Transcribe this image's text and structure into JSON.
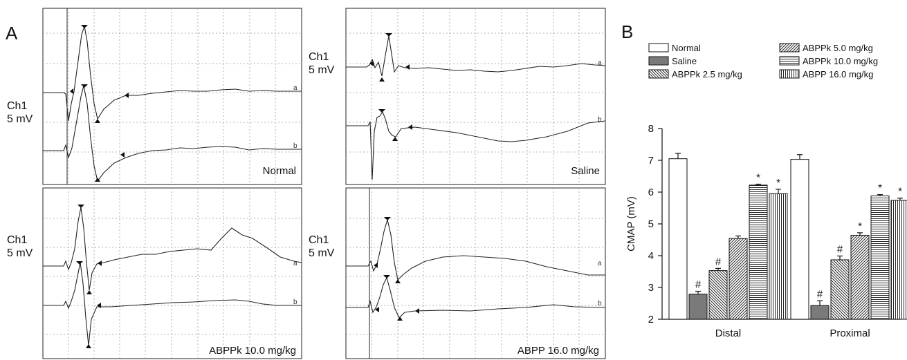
{
  "panel_a": {
    "letter": "A",
    "panels": [
      {
        "id": "normal",
        "channel": "Ch1",
        "scale": "5 mV",
        "condition": "Normal",
        "trace_a": "a",
        "trace_b": "b"
      },
      {
        "id": "saline",
        "channel": "Ch1",
        "scale": "5 mV",
        "condition": "Saline",
        "trace_a": "a",
        "trace_b": "b"
      },
      {
        "id": "abppk10",
        "channel": "Ch1",
        "scale": "5 mV",
        "condition": "ABPPk 10.0 mg/kg",
        "trace_a": "a",
        "trace_b": "b"
      },
      {
        "id": "abpp16",
        "channel": "Ch1",
        "scale": "5 mV",
        "condition": "ABPP 16.0 mg/kg",
        "trace_a": "a",
        "trace_b": "b"
      }
    ]
  },
  "panel_b": {
    "letter": "B",
    "legend": [
      {
        "label": "Normal",
        "pattern": "white"
      },
      {
        "label": "Saline",
        "pattern": "gray"
      },
      {
        "label": "ABPPk 2.5 mg/kg",
        "pattern": "diag-back"
      },
      {
        "label": "ABPPk 5.0 mg/kg",
        "pattern": "diag-fwd"
      },
      {
        "label": "ABPPk 10.0 mg/kg",
        "pattern": "horiz"
      },
      {
        "label": "ABPP 16.0 mg/kg",
        "pattern": "vert"
      }
    ]
  },
  "chart_data": {
    "type": "bar",
    "categories": [
      "Distal",
      "Proximal"
    ],
    "ylabel": "CMAP (mV)",
    "ylim": [
      2,
      8
    ],
    "yticks": [
      2,
      3,
      4,
      5,
      6,
      7,
      8
    ],
    "error_bars": true,
    "series": [
      {
        "name": "Normal",
        "values": [
          7.05,
          7.03
        ],
        "errors": [
          0.17,
          0.15
        ],
        "marks": [
          "",
          ""
        ]
      },
      {
        "name": "Saline",
        "values": [
          2.79,
          2.43
        ],
        "errors": [
          0.09,
          0.15
        ],
        "marks": [
          "#",
          "#"
        ]
      },
      {
        "name": "ABPPk 2.5 mg/kg",
        "values": [
          3.53,
          3.87
        ],
        "errors": [
          0.07,
          0.12
        ],
        "marks": [
          "#",
          "#"
        ]
      },
      {
        "name": "ABPPk 5.0 mg/kg",
        "values": [
          4.54,
          4.64
        ],
        "errors": [
          0.08,
          0.08
        ],
        "marks": [
          "",
          "*"
        ]
      },
      {
        "name": "ABPPk 10.0 mg/kg",
        "values": [
          6.22,
          5.88
        ],
        "errors": [
          0.03,
          0.04
        ],
        "marks": [
          "*",
          "*"
        ]
      },
      {
        "name": "ABPP 16.0 mg/kg",
        "values": [
          5.95,
          5.74
        ],
        "errors": [
          0.14,
          0.07
        ],
        "marks": [
          "*",
          "*"
        ]
      }
    ],
    "colors": {
      "Normal": "#ffffff",
      "Saline": "#7a7a7a"
    }
  }
}
